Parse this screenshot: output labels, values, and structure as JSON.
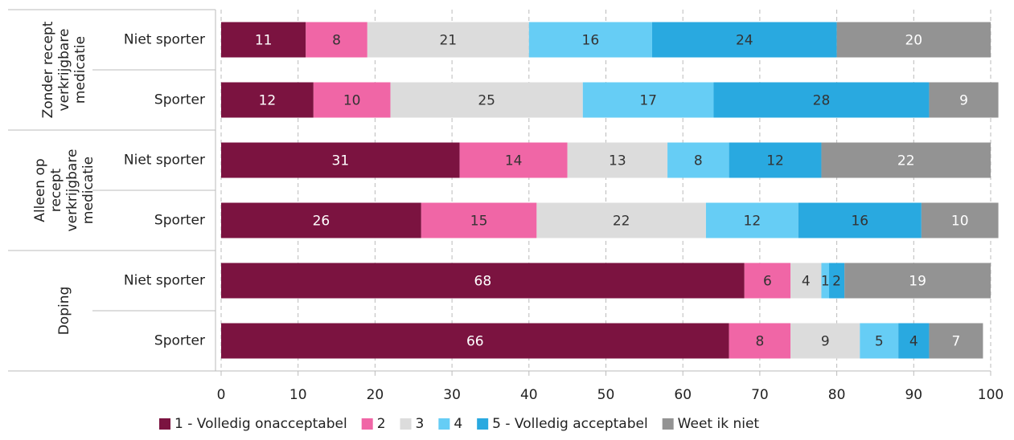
{
  "chart_data": {
    "type": "stacked-barh",
    "groups": [
      {
        "lines": [
          "Zonder recept",
          "verkrijgbare",
          "medicatie"
        ]
      },
      {
        "lines": [
          "Alleen op",
          "recept",
          "verkrijgbare",
          "medicatie"
        ]
      },
      {
        "lines": [
          "Doping"
        ]
      }
    ],
    "categories": [
      "Niet sporter",
      "Sporter",
      "Niet sporter",
      "Sporter",
      "Niet sporter",
      "Sporter"
    ],
    "series": [
      {
        "name": "1 - Volledig onacceptabel",
        "color": "#7b1340",
        "label_color": "#ffffff",
        "values": [
          11,
          12,
          31,
          26,
          68,
          66
        ]
      },
      {
        "name": "2",
        "color": "#f066a6",
        "label_color": "#333333",
        "values": [
          8,
          10,
          14,
          15,
          6,
          8
        ]
      },
      {
        "name": "3",
        "color": "#dcdcdc",
        "label_color": "#333333",
        "values": [
          21,
          25,
          13,
          22,
          4,
          9
        ]
      },
      {
        "name": "4",
        "color": "#66cdf5",
        "label_color": "#333333",
        "values": [
          16,
          17,
          8,
          12,
          1,
          5
        ]
      },
      {
        "name": "5 - Volledig acceptabel",
        "color": "#29a9e0",
        "label_color": "#333333",
        "values": [
          24,
          28,
          12,
          16,
          2,
          4
        ]
      },
      {
        "name": "Weet ik niet",
        "color": "#939393",
        "label_color": "#ffffff",
        "values": [
          20,
          9,
          22,
          10,
          19,
          7
        ]
      }
    ],
    "xlim": [
      0,
      100
    ],
    "xticks": [
      0,
      10,
      20,
      30,
      40,
      50,
      60,
      70,
      80,
      90,
      100
    ],
    "grid": true,
    "legend": "bottom"
  }
}
